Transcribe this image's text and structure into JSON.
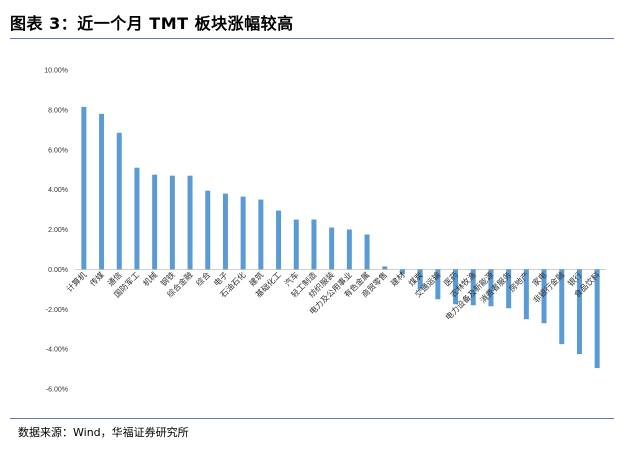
{
  "header": {
    "title": "图表 3：近一个月 TMT 板块涨幅较高"
  },
  "footer": {
    "source": "数据来源：Wind，华福证券研究所"
  },
  "colors": {
    "bar": "#5b9bd5",
    "rule": "#5b7fb5"
  },
  "chart_data": {
    "type": "bar",
    "title": "",
    "xlabel": "",
    "ylabel": "",
    "ylim": [
      -6,
      10
    ],
    "yticks": [
      "10.00%",
      "8.00%",
      "6.00%",
      "4.00%",
      "2.00%",
      "0.00%",
      "-2.00%",
      "-4.00%",
      "-6.00%"
    ],
    "grid": false,
    "legend": "none",
    "categories": [
      "计算机",
      "传媒",
      "通信",
      "国防军工",
      "机械",
      "钢铁",
      "综合金融",
      "综合",
      "电子",
      "石油石化",
      "建筑",
      "基础化工",
      "汽车",
      "轻工制造",
      "纺织服装",
      "电力及公用事业",
      "有色金属",
      "商贸零售",
      "建材",
      "煤炭",
      "交通运输",
      "医药",
      "农林牧渔",
      "电力设备及新能源",
      "消费者服务",
      "房地产",
      "家电",
      "非银行金融",
      "银行",
      "食品饮料"
    ],
    "values": [
      8.15,
      7.8,
      6.85,
      5.1,
      4.75,
      4.7,
      4.7,
      3.95,
      3.8,
      3.65,
      3.5,
      2.95,
      2.5,
      2.5,
      2.1,
      2.0,
      1.75,
      0.15,
      -0.25,
      -1.0,
      -1.5,
      -1.75,
      -1.8,
      -1.85,
      -1.95,
      -2.5,
      -2.7,
      -3.75,
      -4.25,
      -4.95
    ]
  }
}
